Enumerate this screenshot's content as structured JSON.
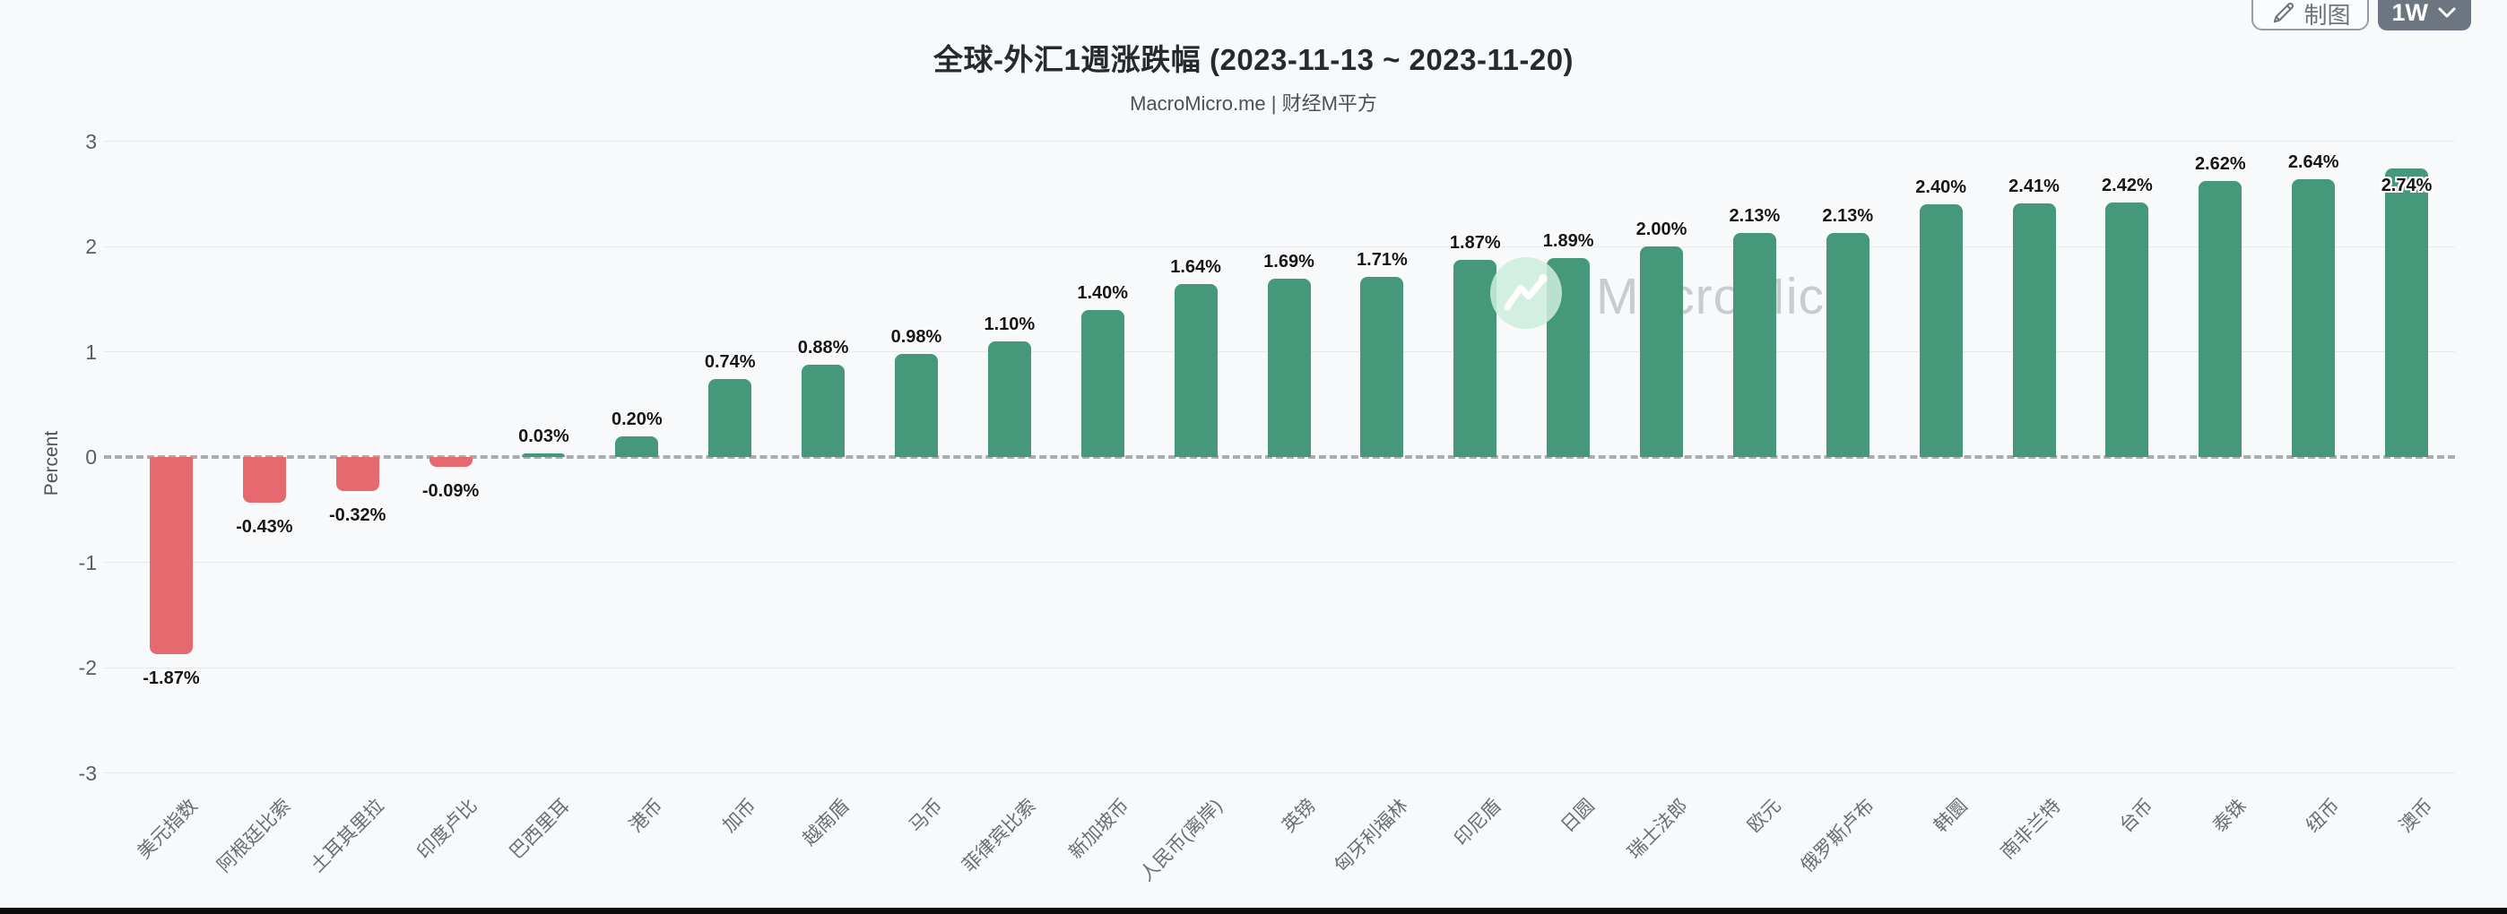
{
  "toolbar": {
    "draw_label": "制图",
    "range_label": "1W"
  },
  "chart_data": {
    "type": "bar",
    "title": "全球-外汇1週涨跌幅 (2023-11-13 ~ 2023-11-20)",
    "subtitle": "MacroMicro.me | 财经M平方",
    "xlabel": "",
    "ylabel": "Percent",
    "ylim": [
      -3,
      3
    ],
    "yticks": [
      3,
      2,
      1,
      0,
      -1,
      -2,
      -3
    ],
    "grid": true,
    "legend": "none",
    "value_label_format": "0.00%",
    "categories": [
      "美元指数",
      "阿根廷比索",
      "土耳其里拉",
      "印度卢比",
      "巴西里耳",
      "港币",
      "加币",
      "越南盾",
      "马币",
      "菲律宾比索",
      "新加坡币",
      "人民币(离岸)",
      "英镑",
      "匈牙利福林",
      "印尼盾",
      "日圆",
      "瑞士法郎",
      "欧元",
      "俄罗斯卢布",
      "韩圜",
      "南非兰特",
      "台币",
      "泰铢",
      "纽币",
      "澳币"
    ],
    "values": [
      -1.87,
      -0.43,
      -0.32,
      -0.09,
      0.03,
      0.2,
      0.74,
      0.88,
      0.98,
      1.1,
      1.4,
      1.64,
      1.69,
      1.71,
      1.87,
      1.89,
      2.0,
      2.13,
      2.13,
      2.4,
      2.41,
      2.42,
      2.62,
      2.64,
      2.74
    ],
    "colors": {
      "positive": "#45997a",
      "negative": "#e5696e",
      "zero_line": "#a9adb2",
      "gridline": "#e7e9ec",
      "range_button_bg": "#6d7680"
    },
    "watermark": {
      "brand": "MacroMicro"
    }
  }
}
